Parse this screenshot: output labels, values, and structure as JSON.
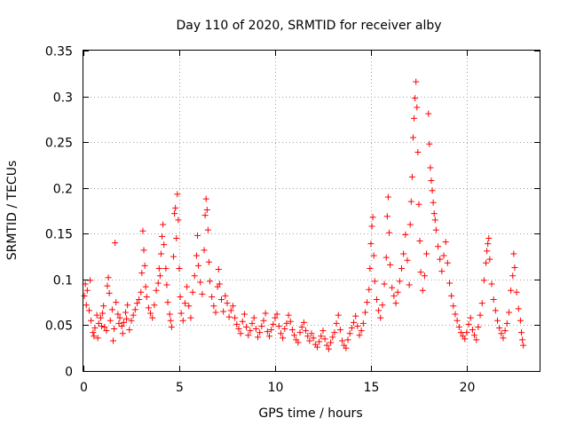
{
  "chart_data": {
    "type": "scatter",
    "title": "Day 110 of 2020, SRMTID for receiver alby",
    "xlabel": "GPS time / hours",
    "ylabel": "SRMTID / TECUs",
    "xlim": [
      0,
      23.8
    ],
    "ylim": [
      0,
      0.35
    ],
    "xticks": [
      0,
      5,
      10,
      15,
      20
    ],
    "xtick_labels": [
      "0",
      "5",
      "10",
      "15",
      "20"
    ],
    "yticks": [
      0,
      0.05,
      0.1,
      0.15,
      0.2,
      0.25,
      0.3,
      0.35
    ],
    "ytick_labels": [
      "0",
      "0.05",
      "0.1",
      "0.15",
      "0.2",
      "0.25",
      "0.3",
      "0.35"
    ],
    "grid": true,
    "marker": "+",
    "color": "#ff0000",
    "series": [
      {
        "name": "SRMTID",
        "points": [
          [
            0.05,
            0.082
          ],
          [
            0.1,
            0.095
          ],
          [
            0.15,
            0.072
          ],
          [
            0.2,
            0.088
          ],
          [
            0.3,
            0.066
          ],
          [
            0.35,
            0.099
          ],
          [
            0.4,
            0.055
          ],
          [
            0.5,
            0.042
          ],
          [
            0.55,
            0.038
          ],
          [
            0.6,
            0.047
          ],
          [
            0.7,
            0.061
          ],
          [
            0.75,
            0.036
          ],
          [
            0.8,
            0.052
          ],
          [
            0.9,
            0.058
          ],
          [
            0.95,
            0.049
          ],
          [
            1.0,
            0.063
          ],
          [
            1.05,
            0.071
          ],
          [
            1.1,
            0.048
          ],
          [
            1.2,
            0.044
          ],
          [
            1.25,
            0.093
          ],
          [
            1.3,
            0.102
          ],
          [
            1.35,
            0.085
          ],
          [
            1.4,
            0.055
          ],
          [
            1.5,
            0.067
          ],
          [
            1.55,
            0.033
          ],
          [
            1.6,
            0.046
          ],
          [
            1.65,
            0.14
          ],
          [
            1.7,
            0.075
          ],
          [
            1.8,
            0.062
          ],
          [
            1.85,
            0.052
          ],
          [
            1.9,
            0.058
          ],
          [
            2.0,
            0.049
          ],
          [
            2.05,
            0.041
          ],
          [
            2.1,
            0.053
          ],
          [
            2.2,
            0.064
          ],
          [
            2.25,
            0.057
          ],
          [
            2.3,
            0.072
          ],
          [
            2.4,
            0.045
          ],
          [
            2.5,
            0.055
          ],
          [
            2.6,
            0.061
          ],
          [
            2.7,
            0.067
          ],
          [
            2.8,
            0.074
          ],
          [
            2.9,
            0.078
          ],
          [
            3.0,
            0.086
          ],
          [
            3.05,
            0.107
          ],
          [
            3.1,
            0.153
          ],
          [
            3.15,
            0.132
          ],
          [
            3.2,
            0.115
          ],
          [
            3.25,
            0.092
          ],
          [
            3.3,
            0.081
          ],
          [
            3.4,
            0.069
          ],
          [
            3.5,
            0.063
          ],
          [
            3.6,
            0.058
          ],
          [
            3.7,
            0.072
          ],
          [
            3.8,
            0.088
          ],
          [
            3.9,
            0.096
          ],
          [
            3.95,
            0.112
          ],
          [
            4.0,
            0.104
          ],
          [
            4.05,
            0.128
          ],
          [
            4.1,
            0.147
          ],
          [
            4.15,
            0.16
          ],
          [
            4.2,
            0.138
          ],
          [
            4.3,
            0.112
          ],
          [
            4.35,
            0.094
          ],
          [
            4.4,
            0.075
          ],
          [
            4.5,
            0.062
          ],
          [
            4.55,
            0.055
          ],
          [
            4.6,
            0.048
          ],
          [
            4.7,
            0.125
          ],
          [
            4.75,
            0.172
          ],
          [
            4.8,
            0.178
          ],
          [
            4.85,
            0.145
          ],
          [
            4.9,
            0.193
          ],
          [
            4.95,
            0.165
          ],
          [
            5.0,
            0.112
          ],
          [
            5.05,
            0.081
          ],
          [
            5.1,
            0.063
          ],
          [
            5.2,
            0.055
          ],
          [
            5.3,
            0.074
          ],
          [
            5.4,
            0.092
          ],
          [
            5.5,
            0.071
          ],
          [
            5.6,
            0.058
          ],
          [
            5.7,
            0.086
          ],
          [
            5.8,
            0.104
          ],
          [
            5.9,
            0.126
          ],
          [
            5.95,
            0.148
          ],
          [
            6.0,
            0.115
          ],
          [
            6.1,
            0.097
          ],
          [
            6.2,
            0.084
          ],
          [
            6.3,
            0.132
          ],
          [
            6.35,
            0.17
          ],
          [
            6.4,
            0.188
          ],
          [
            6.45,
            0.176
          ],
          [
            6.5,
            0.154
          ],
          [
            6.55,
            0.119
          ],
          [
            6.6,
            0.098
          ],
          [
            6.7,
            0.081
          ],
          [
            6.8,
            0.071
          ],
          [
            6.9,
            0.064
          ],
          [
            7.0,
            0.092
          ],
          [
            7.05,
            0.111
          ],
          [
            7.1,
            0.095
          ],
          [
            7.2,
            0.078
          ],
          [
            7.3,
            0.065
          ],
          [
            7.4,
            0.082
          ],
          [
            7.5,
            0.074
          ],
          [
            7.6,
            0.059
          ],
          [
            7.7,
            0.066
          ],
          [
            7.8,
            0.071
          ],
          [
            7.9,
            0.058
          ],
          [
            8.0,
            0.051
          ],
          [
            8.1,
            0.046
          ],
          [
            8.2,
            0.041
          ],
          [
            8.3,
            0.054
          ],
          [
            8.4,
            0.062
          ],
          [
            8.5,
            0.048
          ],
          [
            8.6,
            0.039
          ],
          [
            8.7,
            0.044
          ],
          [
            8.8,
            0.052
          ],
          [
            8.9,
            0.058
          ],
          [
            9.0,
            0.046
          ],
          [
            9.1,
            0.037
          ],
          [
            9.2,
            0.042
          ],
          [
            9.3,
            0.049
          ],
          [
            9.4,
            0.055
          ],
          [
            9.5,
            0.063
          ],
          [
            9.6,
            0.043
          ],
          [
            9.7,
            0.038
          ],
          [
            9.8,
            0.045
          ],
          [
            9.9,
            0.051
          ],
          [
            10.0,
            0.058
          ],
          [
            10.1,
            0.062
          ],
          [
            10.2,
            0.049
          ],
          [
            10.3,
            0.041
          ],
          [
            10.4,
            0.036
          ],
          [
            10.5,
            0.046
          ],
          [
            10.6,
            0.052
          ],
          [
            10.7,
            0.061
          ],
          [
            10.8,
            0.054
          ],
          [
            10.9,
            0.045
          ],
          [
            11.0,
            0.039
          ],
          [
            11.1,
            0.034
          ],
          [
            11.2,
            0.031
          ],
          [
            11.3,
            0.042
          ],
          [
            11.4,
            0.048
          ],
          [
            11.5,
            0.053
          ],
          [
            11.6,
            0.044
          ],
          [
            11.7,
            0.038
          ],
          [
            11.8,
            0.033
          ],
          [
            11.9,
            0.041
          ],
          [
            12.0,
            0.036
          ],
          [
            12.1,
            0.029
          ],
          [
            12.2,
            0.026
          ],
          [
            12.3,
            0.032
          ],
          [
            12.4,
            0.038
          ],
          [
            12.5,
            0.044
          ],
          [
            12.6,
            0.035
          ],
          [
            12.7,
            0.028
          ],
          [
            12.8,
            0.024
          ],
          [
            12.9,
            0.031
          ],
          [
            13.0,
            0.037
          ],
          [
            13.1,
            0.042
          ],
          [
            13.2,
            0.052
          ],
          [
            13.3,
            0.061
          ],
          [
            13.4,
            0.045
          ],
          [
            13.5,
            0.033
          ],
          [
            13.6,
            0.028
          ],
          [
            13.7,
            0.025
          ],
          [
            13.8,
            0.034
          ],
          [
            13.9,
            0.041
          ],
          [
            14.0,
            0.047
          ],
          [
            14.1,
            0.053
          ],
          [
            14.2,
            0.06
          ],
          [
            14.3,
            0.049
          ],
          [
            14.4,
            0.039
          ],
          [
            14.5,
            0.044
          ],
          [
            14.6,
            0.052
          ],
          [
            14.7,
            0.064
          ],
          [
            14.8,
            0.075
          ],
          [
            14.9,
            0.089
          ],
          [
            14.95,
            0.112
          ],
          [
            15.0,
            0.139
          ],
          [
            15.05,
            0.158
          ],
          [
            15.1,
            0.168
          ],
          [
            15.15,
            0.126
          ],
          [
            15.2,
            0.098
          ],
          [
            15.3,
            0.078
          ],
          [
            15.4,
            0.066
          ],
          [
            15.5,
            0.058
          ],
          [
            15.6,
            0.072
          ],
          [
            15.7,
            0.095
          ],
          [
            15.8,
            0.124
          ],
          [
            15.85,
            0.169
          ],
          [
            15.9,
            0.19
          ],
          [
            15.95,
            0.151
          ],
          [
            16.0,
            0.116
          ],
          [
            16.1,
            0.091
          ],
          [
            16.2,
            0.082
          ],
          [
            16.3,
            0.074
          ],
          [
            16.4,
            0.086
          ],
          [
            16.5,
            0.098
          ],
          [
            16.6,
            0.112
          ],
          [
            16.7,
            0.128
          ],
          [
            16.8,
            0.149
          ],
          [
            16.9,
            0.121
          ],
          [
            17.0,
            0.094
          ],
          [
            17.05,
            0.16
          ],
          [
            17.1,
            0.185
          ],
          [
            17.15,
            0.212
          ],
          [
            17.2,
            0.255
          ],
          [
            17.25,
            0.276
          ],
          [
            17.3,
            0.298
          ],
          [
            17.35,
            0.316
          ],
          [
            17.4,
            0.288
          ],
          [
            17.45,
            0.239
          ],
          [
            17.5,
            0.182
          ],
          [
            17.55,
            0.142
          ],
          [
            17.6,
            0.108
          ],
          [
            17.7,
            0.088
          ],
          [
            17.8,
            0.104
          ],
          [
            17.9,
            0.128
          ],
          [
            18.0,
            0.281
          ],
          [
            18.05,
            0.248
          ],
          [
            18.1,
            0.222
          ],
          [
            18.15,
            0.208
          ],
          [
            18.2,
            0.197
          ],
          [
            18.25,
            0.184
          ],
          [
            18.3,
            0.172
          ],
          [
            18.35,
            0.165
          ],
          [
            18.4,
            0.154
          ],
          [
            18.5,
            0.136
          ],
          [
            18.6,
            0.122
          ],
          [
            18.7,
            0.109
          ],
          [
            18.8,
            0.126
          ],
          [
            18.9,
            0.141
          ],
          [
            19.0,
            0.118
          ],
          [
            19.1,
            0.096
          ],
          [
            19.2,
            0.082
          ],
          [
            19.3,
            0.071
          ],
          [
            19.4,
            0.062
          ],
          [
            19.5,
            0.055
          ],
          [
            19.6,
            0.048
          ],
          [
            19.7,
            0.042
          ],
          [
            19.8,
            0.038
          ],
          [
            19.9,
            0.035
          ],
          [
            20.0,
            0.042
          ],
          [
            20.1,
            0.051
          ],
          [
            20.2,
            0.058
          ],
          [
            20.3,
            0.045
          ],
          [
            20.4,
            0.039
          ],
          [
            20.5,
            0.034
          ],
          [
            20.6,
            0.048
          ],
          [
            20.7,
            0.061
          ],
          [
            20.8,
            0.074
          ],
          [
            20.9,
            0.099
          ],
          [
            21.0,
            0.118
          ],
          [
            21.05,
            0.131
          ],
          [
            21.1,
            0.139
          ],
          [
            21.15,
            0.145
          ],
          [
            21.2,
            0.122
          ],
          [
            21.3,
            0.095
          ],
          [
            21.4,
            0.078
          ],
          [
            21.5,
            0.066
          ],
          [
            21.6,
            0.055
          ],
          [
            21.7,
            0.047
          ],
          [
            21.8,
            0.041
          ],
          [
            21.9,
            0.036
          ],
          [
            22.0,
            0.044
          ],
          [
            22.1,
            0.052
          ],
          [
            22.2,
            0.064
          ],
          [
            22.3,
            0.088
          ],
          [
            22.4,
            0.104
          ],
          [
            22.45,
            0.128
          ],
          [
            22.5,
            0.113
          ],
          [
            22.6,
            0.086
          ],
          [
            22.7,
            0.068
          ],
          [
            22.8,
            0.055
          ],
          [
            22.85,
            0.042
          ],
          [
            22.9,
            0.034
          ],
          [
            22.95,
            0.028
          ]
        ]
      }
    ]
  }
}
